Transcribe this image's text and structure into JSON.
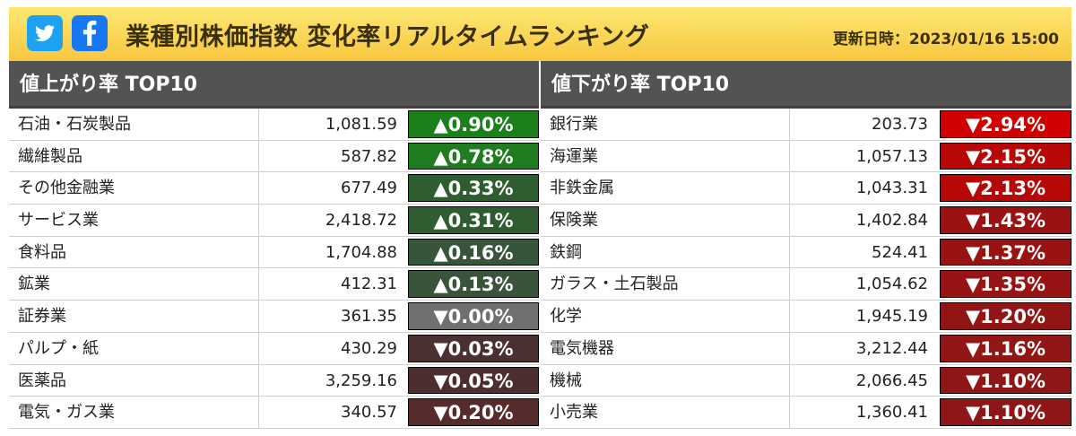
{
  "header": {
    "title": "業種別株価指数 変化率リアルタイムランキング",
    "updated": "更新日時：2023/01/16 15:00"
  },
  "icons": {
    "twitter": "twitter-icon",
    "facebook": "facebook-icon"
  },
  "colors": {
    "header": "#f9d556",
    "panel_header": "#535353",
    "up_strong": "#1d7a1d",
    "down_strong": "#cc0000"
  },
  "gainers": {
    "title": "値上がり率 TOP10",
    "rows": [
      {
        "name": "石油・石炭製品",
        "value": "1,081.59",
        "change": "▲0.90%",
        "color": "#1b801b"
      },
      {
        "name": "繊維製品",
        "value": "587.82",
        "change": "▲0.78%",
        "color": "#1f7d1f"
      },
      {
        "name": "その他金融業",
        "value": "677.49",
        "change": "▲0.33%",
        "color": "#2e5e30"
      },
      {
        "name": "サービス業",
        "value": "2,418.72",
        "change": "▲0.31%",
        "color": "#2f5c31"
      },
      {
        "name": "食料品",
        "value": "1,704.88",
        "change": "▲0.16%",
        "color": "#37553a"
      },
      {
        "name": "鉱業",
        "value": "412.31",
        "change": "▲0.13%",
        "color": "#39543b"
      },
      {
        "name": "証券業",
        "value": "361.35",
        "change": "▼0.00%",
        "color": "#707070"
      },
      {
        "name": "パルプ・紙",
        "value": "430.29",
        "change": "▼0.03%",
        "color": "#4b3031"
      },
      {
        "name": "医薬品",
        "value": "3,259.16",
        "change": "▼0.05%",
        "color": "#4d2e2f"
      },
      {
        "name": "電気・ガス業",
        "value": "340.57",
        "change": "▼0.20%",
        "color": "#572a2b"
      }
    ]
  },
  "losers": {
    "title": "値下がり率 TOP10",
    "rows": [
      {
        "name": "銀行業",
        "value": "203.73",
        "change": "▼2.94%",
        "color": "#d10000"
      },
      {
        "name": "海運業",
        "value": "1,057.13",
        "change": "▼2.15%",
        "color": "#b80707"
      },
      {
        "name": "非鉄金属",
        "value": "1,043.31",
        "change": "▼2.13%",
        "color": "#b70808"
      },
      {
        "name": "保険業",
        "value": "1,402.84",
        "change": "▼1.43%",
        "color": "#9b1212"
      },
      {
        "name": "鉄鋼",
        "value": "524.41",
        "change": "▼1.37%",
        "color": "#991313"
      },
      {
        "name": "ガラス・土石製品",
        "value": "1,054.62",
        "change": "▼1.35%",
        "color": "#981313"
      },
      {
        "name": "化学",
        "value": "1,945.19",
        "change": "▼1.20%",
        "color": "#921515"
      },
      {
        "name": "電気機器",
        "value": "3,212.44",
        "change": "▼1.16%",
        "color": "#911616"
      },
      {
        "name": "機械",
        "value": "2,066.45",
        "change": "▼1.10%",
        "color": "#8f1616"
      },
      {
        "name": "小売業",
        "value": "1,360.41",
        "change": "▼1.10%",
        "color": "#8f1616"
      }
    ]
  }
}
